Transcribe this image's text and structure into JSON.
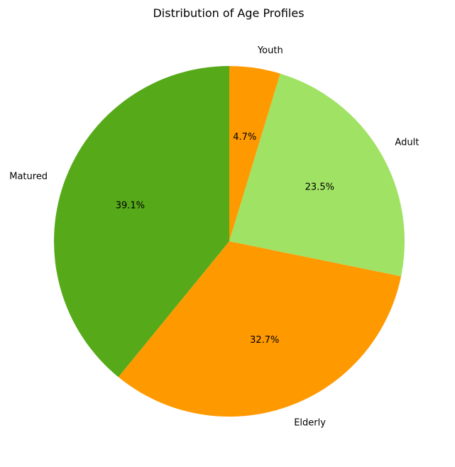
{
  "chart_data": {
    "type": "pie",
    "title": "Distribution of Age Profiles",
    "start_angle_deg": 90,
    "direction": "clockwise",
    "slices": [
      {
        "label": "Youth",
        "value": 4.7,
        "pct_label": "4.7%",
        "color": "#ff9900"
      },
      {
        "label": "Adult",
        "value": 23.5,
        "pct_label": "23.5%",
        "color": "#a0e264"
      },
      {
        "label": "Elderly",
        "value": 32.7,
        "pct_label": "32.7%",
        "color": "#ff9900"
      },
      {
        "label": "Matured",
        "value": 39.1,
        "pct_label": "39.1%",
        "color": "#56aa1a"
      }
    ]
  }
}
